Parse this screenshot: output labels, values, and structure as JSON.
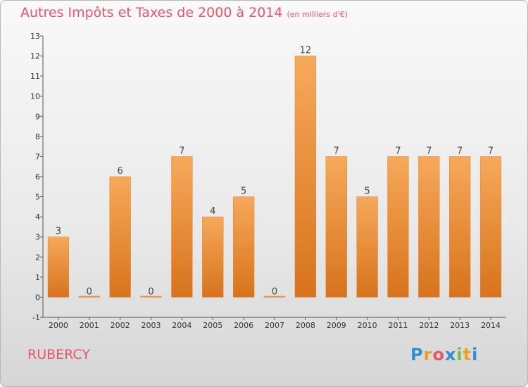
{
  "title": "Autres Impôts et Taxes de 2000 à 2014",
  "unit_note": "(en milliers d'€)",
  "commune": "RUBERCY",
  "logo": {
    "text": "Proxiti",
    "letter_colors": [
      "#2e8fd6",
      "#e8a220",
      "#e8566a",
      "#2e8fd6",
      "#7bbf3a",
      "#e8a220",
      "#2e8fd6"
    ]
  },
  "colors": {
    "bar_top": "#f6a95a",
    "bar_bottom": "#d8731c",
    "title": "#e8566a",
    "axis": "#555555"
  },
  "chart_data": {
    "type": "bar",
    "title": "Autres Impôts et Taxes de 2000 à 2014",
    "subtitle": "(en milliers d'€)",
    "categories": [
      "2000",
      "2001",
      "2002",
      "2003",
      "2004",
      "2005",
      "2006",
      "2007",
      "2008",
      "2009",
      "2010",
      "2011",
      "2012",
      "2013",
      "2014"
    ],
    "values": [
      3,
      0,
      6,
      0,
      7,
      4,
      5,
      0,
      12,
      7,
      5,
      7,
      7,
      7,
      7
    ],
    "y_ticks": [
      "-1",
      "0",
      "1",
      "2",
      "3",
      "4",
      "5",
      "6",
      "7",
      "8",
      "9",
      "10",
      "11",
      "12",
      "13"
    ],
    "ylim": [
      -1,
      13
    ],
    "grid": false,
    "data_labels": true
  }
}
